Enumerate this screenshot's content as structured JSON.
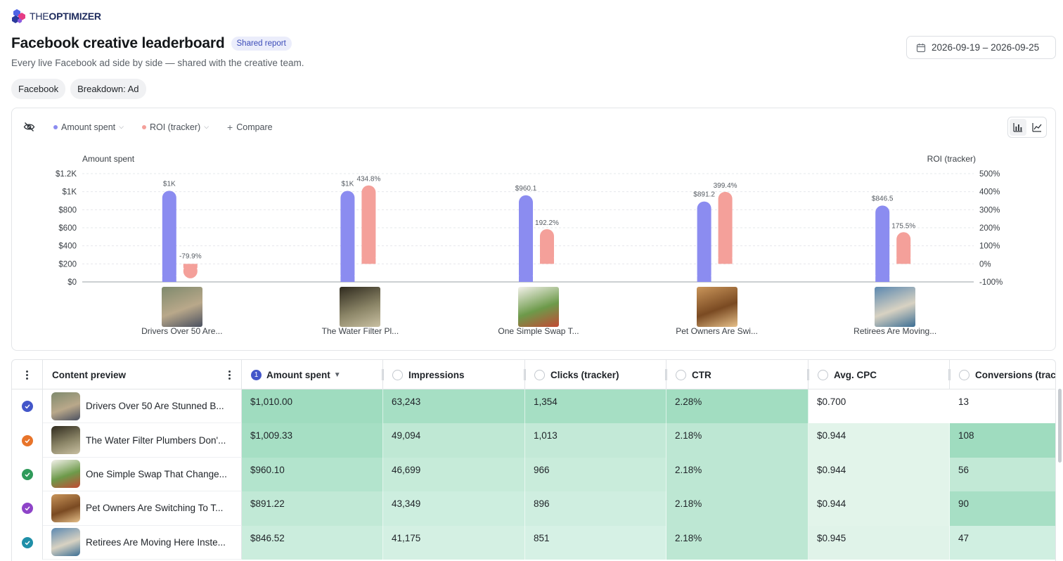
{
  "brand": {
    "logo_text_light": "THE",
    "logo_text_bold": "OPTIMIZER"
  },
  "header": {
    "title": "Facebook creative leaderboard",
    "badge": "Shared report",
    "subtitle": "Every live Facebook ad side by side — shared with the creative team.",
    "date_range": "2026-09-19 – 2026-09-25"
  },
  "filters": [
    "Facebook",
    "Breakdown: Ad"
  ],
  "chart_toolbar": {
    "metric_1": "Amount spent",
    "metric_2": "ROI (tracker)",
    "compare": "Compare",
    "metric_1_color": "#8b8cf0",
    "metric_2_color": "#f4a09a"
  },
  "chart_data": {
    "type": "bar",
    "categories": [
      "Drivers Over 50 Are...",
      "The Water Filter Pl...",
      "One Simple Swap T...",
      "Pet Owners Are Swi...",
      "Retirees Are Moving..."
    ],
    "series": [
      {
        "name": "Amount spent",
        "axis": "left",
        "color": "#8b8cf0",
        "values": [
          1010.0,
          1009.33,
          960.1,
          891.22,
          846.52
        ],
        "labels": [
          "$1K",
          "$1K",
          "$960.1",
          "$891.2",
          "$846.5"
        ]
      },
      {
        "name": "ROI (tracker)",
        "axis": "right",
        "color": "#f4a09a",
        "values": [
          -79.9,
          434.8,
          192.2,
          399.4,
          175.5
        ],
        "labels": [
          "-79.9%",
          "434.8%",
          "192.2%",
          "399.4%",
          "175.5%"
        ]
      }
    ],
    "ylabel_left": "Amount spent",
    "ylabel_right": "ROI (tracker)",
    "ylim_left": [
      0,
      1200
    ],
    "ylim_right": [
      -100,
      500
    ],
    "yticks_left": [
      "$0",
      "$200",
      "$400",
      "$600",
      "$800",
      "$1K",
      "$1.2K"
    ],
    "yticks_right": [
      "-100%",
      "0%",
      "100%",
      "200%",
      "300%",
      "400%",
      "500%"
    ],
    "grid": true
  },
  "table": {
    "columns": [
      {
        "label": "Content preview"
      },
      {
        "label": "Amount spent",
        "sort_index": "1"
      },
      {
        "label": "Impressions"
      },
      {
        "label": "Clicks (tracker)"
      },
      {
        "label": "CTR"
      },
      {
        "label": "Avg. CPC"
      },
      {
        "label": "Conversions (tracker)"
      }
    ],
    "rows": [
      {
        "title": "Drivers Over 50 Are Stunned B...",
        "check_color": "#4356c9",
        "amount": "$1,010.00",
        "impressions": "63,243",
        "clicks": "1,354",
        "ctr": "2.28%",
        "cpc": "$0.700",
        "conversions": "13"
      },
      {
        "title": "The Water Filter Plumbers Don'...",
        "check_color": "#e8742a",
        "amount": "$1,009.33",
        "impressions": "49,094",
        "clicks": "1,013",
        "ctr": "2.18%",
        "cpc": "$0.944",
        "conversions": "108"
      },
      {
        "title": "One Simple Swap That Change...",
        "check_color": "#2f9a5a",
        "amount": "$960.10",
        "impressions": "46,699",
        "clicks": "966",
        "ctr": "2.18%",
        "cpc": "$0.944",
        "conversions": "56"
      },
      {
        "title": "Pet Owners Are Switching To T...",
        "check_color": "#8e44c8",
        "amount": "$891.22",
        "impressions": "43,349",
        "clicks": "896",
        "ctr": "2.18%",
        "cpc": "$0.944",
        "conversions": "90"
      },
      {
        "title": "Retirees Are Moving Here Inste...",
        "check_color": "#1f8fa8",
        "amount": "$846.52",
        "impressions": "41,175",
        "clicks": "851",
        "ctr": "2.18%",
        "cpc": "$0.945",
        "conversions": "47"
      }
    ]
  }
}
